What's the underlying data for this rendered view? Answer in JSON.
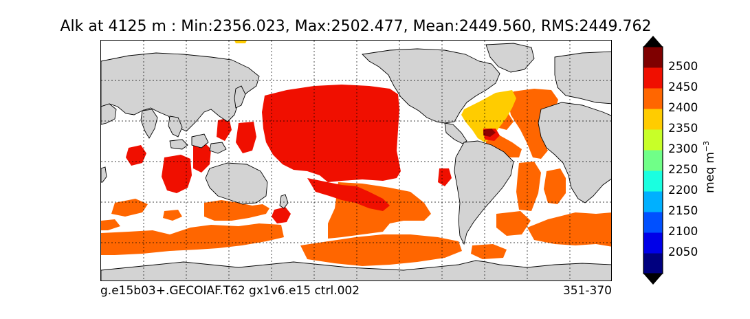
{
  "title": "Alk at 4125 m : Min:2356.023, Max:2502.477, Mean:2449.560, RMS:2449.762",
  "case_name": "g.e15b03+.GECOIAF.T62 gx1v6.e15 ctrl.002",
  "years": "351-370",
  "colorbar": {
    "unit": "meq m",
    "unit_exponent": "−3",
    "ticks": [
      "2050",
      "2100",
      "2150",
      "2200",
      "2250",
      "2300",
      "2350",
      "2400",
      "2450",
      "2500"
    ],
    "bins": [
      "#00007f",
      "#0000e8",
      "#0050ff",
      "#00b0ff",
      "#1affe0",
      "#70ff88",
      "#c8ff28",
      "#ffcc00",
      "#ff6600",
      "#f00f00",
      "#7f0000"
    ],
    "under_color": "#000000",
    "over_color": "#000000"
  },
  "colors": {
    "land": "#d3d3d3",
    "no_data": "#ffffff",
    "band_2350": "#ffcc00",
    "band_2400": "#ff6600",
    "band_2450": "#f00f00",
    "band_2500": "#7f0000"
  }
}
